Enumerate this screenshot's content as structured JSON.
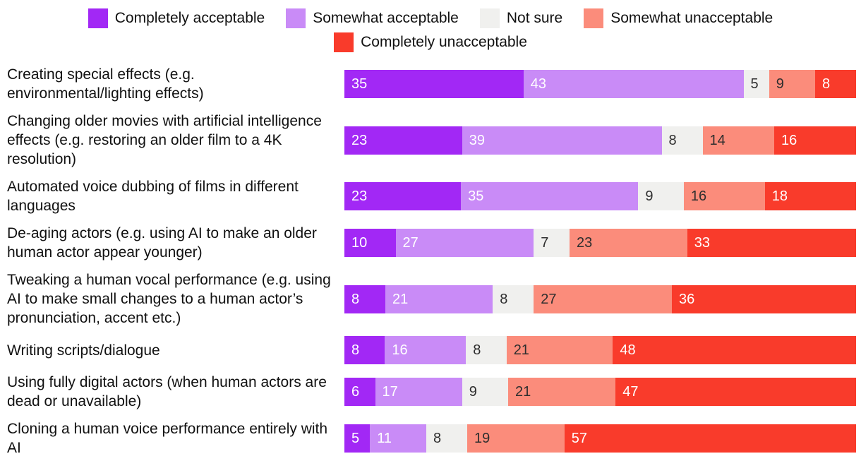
{
  "legend": {
    "rows": [
      [
        "Completely acceptable",
        "Somewhat acceptable",
        "Not sure",
        "Somewhat unacceptable"
      ],
      [
        "Completely unacceptable"
      ]
    ]
  },
  "series_styles": {
    "Completely acceptable": {
      "color": "#A228F5",
      "text_color": "#ffffff"
    },
    "Somewhat acceptable": {
      "color": "#C98BF7",
      "text_color": "#ffffff"
    },
    "Not sure": {
      "color": "#F0F0EE",
      "text_color": "#2e2e2e"
    },
    "Somewhat unacceptable": {
      "color": "#FB8C7B",
      "text_color": "#2e2e2e"
    },
    "Completely unacceptable": {
      "color": "#F93B2B",
      "text_color": "#ffffff"
    }
  },
  "chart_data": {
    "type": "bar",
    "orientation": "horizontal",
    "stacked": true,
    "unit": "percent",
    "xlim": [
      0,
      100
    ],
    "grid": false,
    "legend_position": "top",
    "value_labels": "inside-left",
    "categories": [
      "Creating special effects (e.g. environmental/lighting effects)",
      "Changing older movies with artificial intelligence effects (e.g. restoring an older film to a 4K resolution)",
      "Automated voice dubbing of films in different languages",
      "De-aging actors (e.g. using AI to make an older human actor appear younger)",
      "Tweaking a human vocal performance (e.g. using AI to make small changes to a human actor’s pronunciation, accent etc.)",
      "Writing scripts/dialogue",
      "Using fully digital actors (when human actors are dead or unavailable)",
      "Cloning a human voice performance entirely with AI"
    ],
    "series": [
      {
        "name": "Completely acceptable",
        "values": [
          35,
          23,
          23,
          10,
          8,
          8,
          6,
          5
        ]
      },
      {
        "name": "Somewhat acceptable",
        "values": [
          43,
          39,
          35,
          27,
          21,
          16,
          17,
          11
        ]
      },
      {
        "name": "Not sure",
        "values": [
          5,
          8,
          9,
          7,
          8,
          8,
          9,
          8
        ]
      },
      {
        "name": "Somewhat unacceptable",
        "values": [
          9,
          14,
          16,
          23,
          27,
          21,
          21,
          19
        ]
      },
      {
        "name": "Completely unacceptable",
        "values": [
          8,
          16,
          18,
          33,
          36,
          48,
          47,
          57
        ]
      }
    ]
  }
}
